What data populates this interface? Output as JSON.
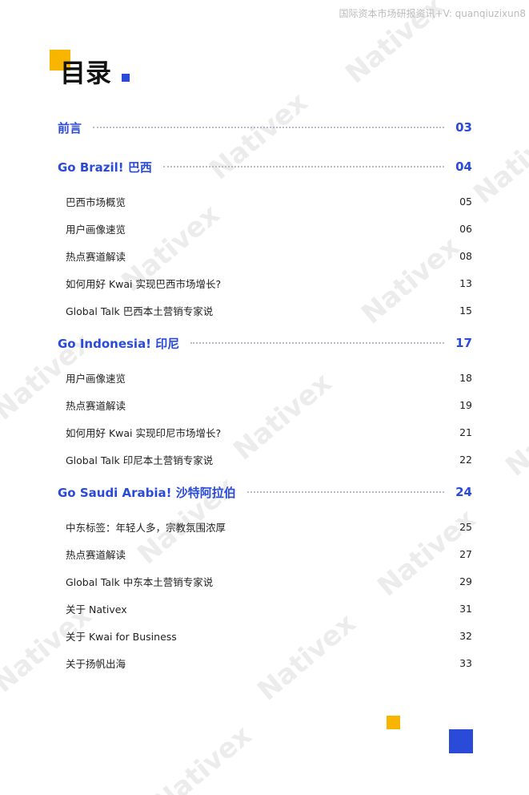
{
  "header": {
    "notice": "国际资本市场研报资讯+V: quanqiuzixun8",
    "title": "目录"
  },
  "watermark": "Nativex",
  "sections": [
    {
      "title": "前言",
      "page": "03",
      "items": []
    },
    {
      "title": "Go Brazil! 巴西",
      "page": "04",
      "items": [
        {
          "label": "巴西市场概览",
          "page": "05"
        },
        {
          "label": "用户画像速览",
          "page": "06"
        },
        {
          "label": "热点赛道解读",
          "page": "08"
        },
        {
          "label": "如何用好 Kwai 实现巴西市场增长?",
          "page": "13"
        },
        {
          "label": "Global Talk 巴西本土营销专家说",
          "page": "15"
        }
      ]
    },
    {
      "title": "Go Indonesia! 印尼",
      "page": "17",
      "items": [
        {
          "label": "用户画像速览",
          "page": "18"
        },
        {
          "label": "热点赛道解读",
          "page": "19"
        },
        {
          "label": "如何用好 Kwai 实现印尼市场增长?",
          "page": "21"
        },
        {
          "label": "Global Talk 印尼本土营销专家说",
          "page": "22"
        }
      ]
    },
    {
      "title": "Go Saudi Arabia!  沙特阿拉伯",
      "page": "24",
      "items": [
        {
          "label": "中东标签：年轻人多，宗教氛围浓厚",
          "page": "25"
        },
        {
          "label": "热点赛道解读",
          "page": "27"
        },
        {
          "label": "Global Talk 中东本土营销专家说",
          "page": "29"
        },
        {
          "label": "关于 Nativex",
          "page": "31"
        },
        {
          "label": "关于 Kwai for Business",
          "page": "32"
        },
        {
          "label": "关于扬帆出海",
          "page": "33"
        }
      ]
    }
  ]
}
